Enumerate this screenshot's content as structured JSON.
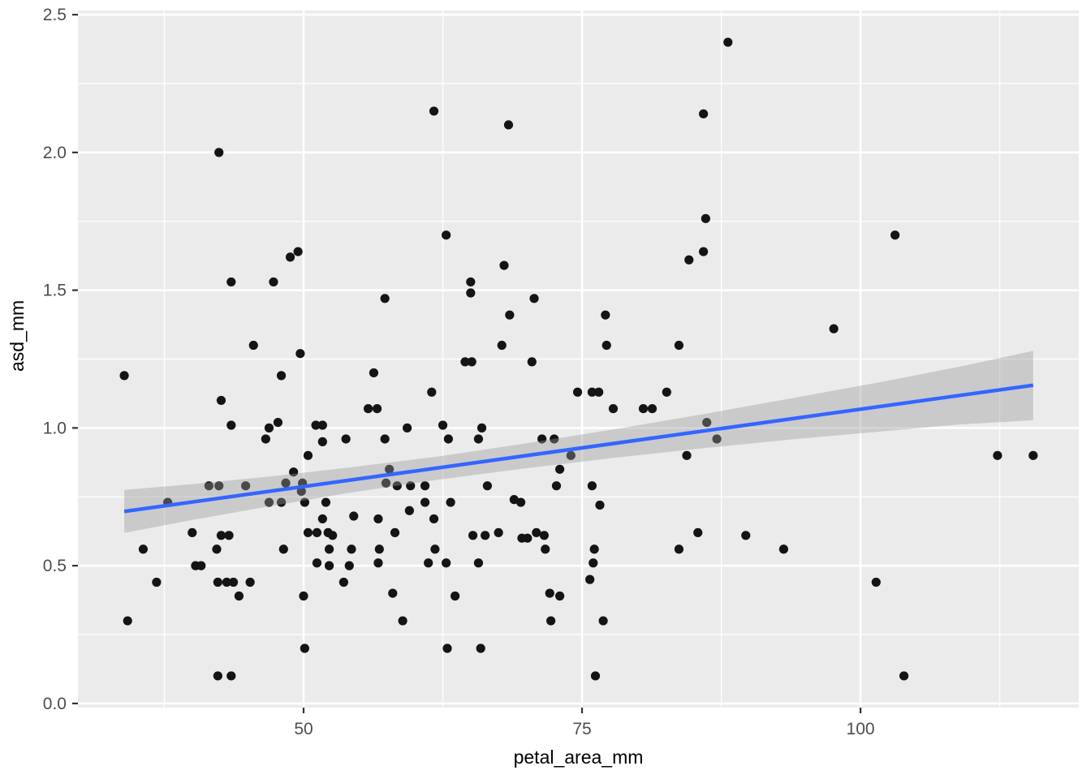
{
  "figure": {
    "xlabel": "petal_area_mm",
    "ylabel": "asd_mm"
  },
  "chart_data": {
    "type": "scatter",
    "title": "",
    "xlabel": "petal_area_mm",
    "ylabel": "asd_mm",
    "legend": "none",
    "grid": "major-and-minor",
    "xlim": [
      29.74,
      119.6
    ],
    "ylim": [
      -0.015,
      2.515
    ],
    "x_major_ticks": [
      {
        "value": 50,
        "label": "50"
      },
      {
        "value": 75,
        "label": "75"
      },
      {
        "value": 100,
        "label": "100"
      }
    ],
    "y_major_ticks": [
      {
        "value": 0.0,
        "label": "0.0"
      },
      {
        "value": 0.5,
        "label": "0.5"
      },
      {
        "value": 1.0,
        "label": "1.0"
      },
      {
        "value": 1.5,
        "label": "1.5"
      },
      {
        "value": 2.0,
        "label": "2.0"
      },
      {
        "value": 2.5,
        "label": "2.5"
      }
    ],
    "x_minor_ticks": [
      37.5,
      62.5,
      87.5,
      112.5
    ],
    "y_minor_ticks": [
      0.25,
      0.75,
      1.25,
      1.75,
      2.25
    ],
    "points": [
      [
        42.4,
        2.0
      ],
      [
        88.1,
        2.4
      ],
      [
        61.7,
        2.15
      ],
      [
        68.4,
        2.1
      ],
      [
        85.9,
        2.14
      ],
      [
        86.1,
        1.76
      ],
      [
        62.8,
        1.7
      ],
      [
        103.1,
        1.7
      ],
      [
        48.8,
        1.62
      ],
      [
        49.5,
        1.64
      ],
      [
        43.5,
        1.53
      ],
      [
        47.3,
        1.53
      ],
      [
        57.3,
        1.47
      ],
      [
        45.5,
        1.3
      ],
      [
        49.7,
        1.27
      ],
      [
        33.9,
        1.19
      ],
      [
        48.0,
        1.19
      ],
      [
        56.3,
        1.2
      ],
      [
        42.6,
        1.1
      ],
      [
        55.8,
        1.07
      ],
      [
        56.6,
        1.07
      ],
      [
        43.5,
        1.01
      ],
      [
        46.9,
        1.0
      ],
      [
        47.7,
        1.02
      ],
      [
        51.1,
        1.01
      ],
      [
        51.7,
        1.01
      ],
      [
        46.6,
        0.96
      ],
      [
        51.7,
        0.95
      ],
      [
        53.8,
        0.96
      ],
      [
        57.3,
        0.96
      ],
      [
        59.3,
        1.0
      ],
      [
        50.4,
        0.9
      ],
      [
        49.1,
        0.84
      ],
      [
        57.7,
        0.85
      ],
      [
        85.9,
        1.64
      ],
      [
        84.6,
        1.61
      ],
      [
        68.0,
        1.59
      ],
      [
        65.0,
        1.53
      ],
      [
        65.0,
        1.49
      ],
      [
        70.7,
        1.47
      ],
      [
        68.5,
        1.41
      ],
      [
        77.1,
        1.41
      ],
      [
        67.8,
        1.3
      ],
      [
        77.2,
        1.3
      ],
      [
        83.7,
        1.3
      ],
      [
        64.5,
        1.24
      ],
      [
        65.1,
        1.24
      ],
      [
        70.5,
        1.24
      ],
      [
        61.5,
        1.13
      ],
      [
        74.6,
        1.13
      ],
      [
        75.9,
        1.13
      ],
      [
        76.5,
        1.13
      ],
      [
        82.6,
        1.13
      ],
      [
        77.8,
        1.07
      ],
      [
        80.5,
        1.07
      ],
      [
        81.3,
        1.07
      ],
      [
        62.5,
        1.01
      ],
      [
        66.0,
        1.0
      ],
      [
        63.0,
        0.96
      ],
      [
        65.7,
        0.96
      ],
      [
        71.4,
        0.96
      ],
      [
        72.5,
        0.96
      ],
      [
        74.0,
        0.9
      ],
      [
        86.2,
        1.02
      ],
      [
        87.1,
        0.96
      ],
      [
        84.4,
        0.9
      ],
      [
        73.0,
        0.85
      ],
      [
        97.6,
        1.36
      ],
      [
        112.3,
        0.9
      ],
      [
        115.5,
        0.9
      ],
      [
        41.5,
        0.79
      ],
      [
        42.4,
        0.79
      ],
      [
        44.8,
        0.79
      ],
      [
        48.4,
        0.8
      ],
      [
        49.9,
        0.8
      ],
      [
        49.8,
        0.77
      ],
      [
        37.8,
        0.73
      ],
      [
        46.9,
        0.73
      ],
      [
        48.0,
        0.73
      ],
      [
        50.1,
        0.73
      ],
      [
        52.0,
        0.73
      ],
      [
        57.4,
        0.8
      ],
      [
        58.4,
        0.79
      ],
      [
        59.6,
        0.79
      ],
      [
        59.5,
        0.7
      ],
      [
        51.7,
        0.67
      ],
      [
        54.5,
        0.68
      ],
      [
        56.7,
        0.67
      ],
      [
        40.0,
        0.62
      ],
      [
        42.6,
        0.61
      ],
      [
        43.3,
        0.61
      ],
      [
        50.4,
        0.62
      ],
      [
        51.2,
        0.62
      ],
      [
        52.2,
        0.62
      ],
      [
        52.6,
        0.61
      ],
      [
        58.2,
        0.62
      ],
      [
        35.6,
        0.56
      ],
      [
        42.2,
        0.56
      ],
      [
        48.2,
        0.56
      ],
      [
        52.3,
        0.56
      ],
      [
        54.3,
        0.56
      ],
      [
        56.8,
        0.56
      ],
      [
        40.3,
        0.5
      ],
      [
        40.8,
        0.5
      ],
      [
        51.2,
        0.51
      ],
      [
        52.3,
        0.5
      ],
      [
        54.1,
        0.5
      ],
      [
        56.7,
        0.51
      ],
      [
        36.8,
        0.44
      ],
      [
        42.3,
        0.44
      ],
      [
        43.1,
        0.44
      ],
      [
        43.7,
        0.44
      ],
      [
        45.2,
        0.44
      ],
      [
        53.6,
        0.44
      ],
      [
        44.2,
        0.39
      ],
      [
        50.0,
        0.39
      ],
      [
        58.0,
        0.4
      ],
      [
        34.2,
        0.3
      ],
      [
        58.9,
        0.3
      ],
      [
        50.1,
        0.2
      ],
      [
        42.3,
        0.1
      ],
      [
        43.5,
        0.1
      ],
      [
        60.9,
        0.79
      ],
      [
        66.5,
        0.79
      ],
      [
        72.7,
        0.79
      ],
      [
        75.9,
        0.79
      ],
      [
        60.9,
        0.73
      ],
      [
        63.2,
        0.73
      ],
      [
        68.9,
        0.74
      ],
      [
        69.5,
        0.73
      ],
      [
        76.6,
        0.72
      ],
      [
        61.7,
        0.67
      ],
      [
        65.2,
        0.61
      ],
      [
        66.3,
        0.61
      ],
      [
        67.5,
        0.62
      ],
      [
        69.6,
        0.6
      ],
      [
        70.1,
        0.6
      ],
      [
        70.9,
        0.62
      ],
      [
        71.6,
        0.61
      ],
      [
        61.8,
        0.56
      ],
      [
        71.7,
        0.56
      ],
      [
        76.1,
        0.56
      ],
      [
        83.7,
        0.56
      ],
      [
        85.4,
        0.62
      ],
      [
        89.7,
        0.61
      ],
      [
        61.2,
        0.51
      ],
      [
        62.8,
        0.51
      ],
      [
        65.7,
        0.51
      ],
      [
        76.0,
        0.51
      ],
      [
        75.7,
        0.45
      ],
      [
        63.6,
        0.39
      ],
      [
        72.1,
        0.4
      ],
      [
        73.0,
        0.39
      ],
      [
        72.2,
        0.3
      ],
      [
        76.9,
        0.3
      ],
      [
        62.9,
        0.2
      ],
      [
        65.9,
        0.2
      ],
      [
        76.2,
        0.1
      ],
      [
        93.1,
        0.56
      ],
      [
        101.4,
        0.44
      ],
      [
        103.9,
        0.1
      ]
    ],
    "smooth_line": {
      "method": "linear",
      "endpoints": [
        [
          33.9,
          0.697
        ],
        [
          115.5,
          1.155
        ]
      ]
    },
    "confidence_ribbon": {
      "x": [
        33.9,
        40.0,
        47.0,
        54.0,
        62.0,
        70.0,
        78.0,
        86.0,
        94.0,
        102.0,
        109.0,
        115.5
      ],
      "upper": [
        0.775,
        0.796,
        0.824,
        0.856,
        0.896,
        0.944,
        0.996,
        1.051,
        1.109,
        1.168,
        1.223,
        1.28
      ],
      "lower": [
        0.619,
        0.666,
        0.716,
        0.764,
        0.812,
        0.854,
        0.892,
        0.927,
        0.959,
        0.988,
        1.013,
        1.028
      ]
    },
    "colors": {
      "panel_background": "#EBEBEB",
      "grid": "#FFFFFF",
      "point": "#141414",
      "smooth_line": "#3366FF",
      "ribbon": "#999999",
      "ribbon_opacity": 0.4,
      "axis_text": "#4D4D4D",
      "axis_title": "#000000",
      "tick_mark": "#333333",
      "figure_background": "#FFFFFF"
    }
  }
}
